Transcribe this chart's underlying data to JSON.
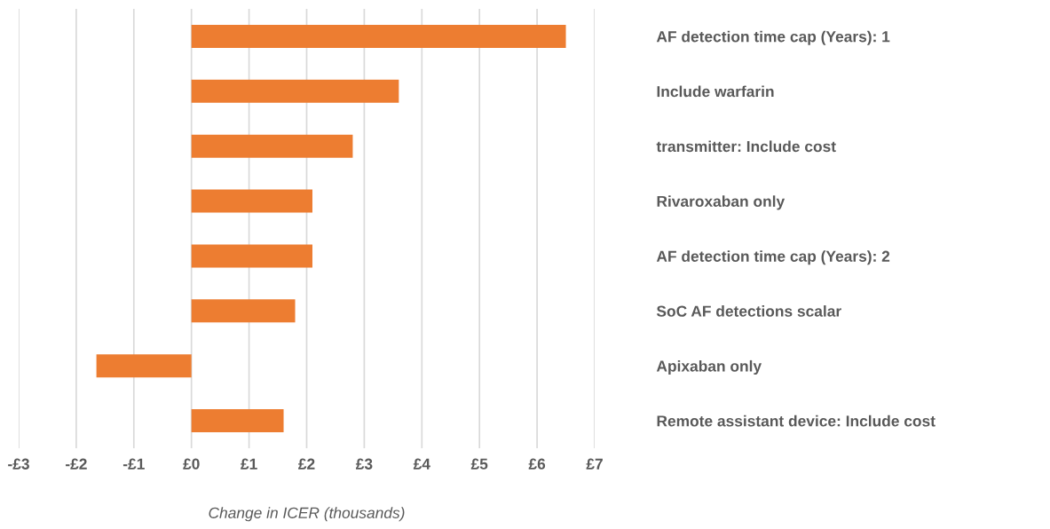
{
  "chart_data": {
    "type": "bar",
    "orientation": "horizontal",
    "xlabel": "Change in ICER (thousands)",
    "categories": [
      "AF detection time cap (Years): 1",
      "Include warfarin",
      "transmitter: Include cost",
      "Rivaroxaban only",
      "AF detection time cap (Years): 2",
      "SoC AF detections scalar",
      "Apixaban only",
      "Remote assistant device: Include cost"
    ],
    "values": [
      6.5,
      3.6,
      2.8,
      2.1,
      2.1,
      1.8,
      -1.65,
      1.6
    ],
    "color": "#ed7d31",
    "xlim": [
      -3,
      7
    ],
    "xticks": [
      {
        "value": -3,
        "label": "-£3"
      },
      {
        "value": -2,
        "label": "-£2"
      },
      {
        "value": -1,
        "label": "-£1"
      },
      {
        "value": 0,
        "label": "£0"
      },
      {
        "value": 1,
        "label": "£1"
      },
      {
        "value": 2,
        "label": "£2"
      },
      {
        "value": 3,
        "label": "£3"
      },
      {
        "value": 4,
        "label": "£4"
      },
      {
        "value": 5,
        "label": "£5"
      },
      {
        "value": 6,
        "label": "£6"
      },
      {
        "value": 7,
        "label": "£7"
      }
    ],
    "grid": "x",
    "legend": false
  }
}
